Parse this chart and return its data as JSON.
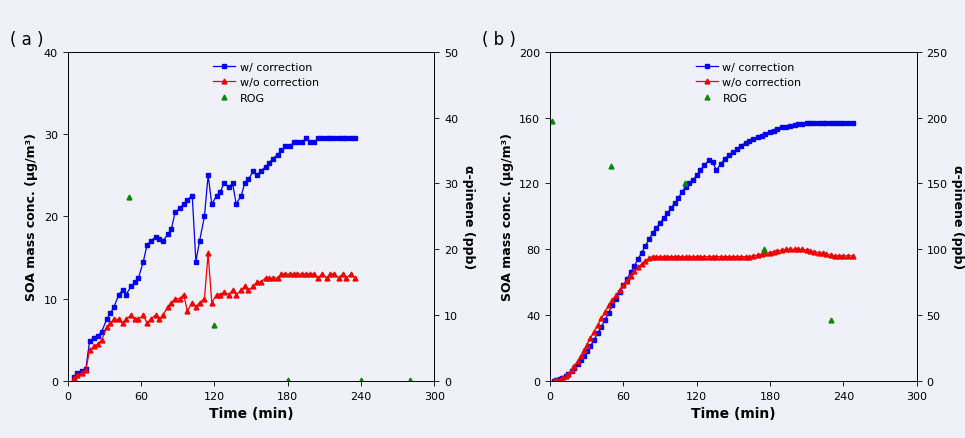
{
  "panel_a": {
    "blue_x": [
      5,
      8,
      12,
      15,
      18,
      22,
      25,
      28,
      32,
      35,
      38,
      42,
      45,
      48,
      52,
      55,
      58,
      62,
      65,
      68,
      72,
      75,
      78,
      82,
      85,
      88,
      92,
      95,
      98,
      102,
      105,
      108,
      112,
      115,
      118,
      122,
      125,
      128,
      132,
      135,
      138,
      142,
      145,
      148,
      152,
      155,
      158,
      162,
      165,
      168,
      172,
      175,
      178,
      182,
      185,
      188,
      192,
      195,
      198,
      202,
      205,
      208,
      212,
      215,
      218,
      222,
      225,
      228,
      232,
      235
    ],
    "blue_y": [
      0.5,
      1.0,
      1.2,
      1.5,
      4.8,
      5.2,
      5.5,
      6.0,
      7.5,
      8.2,
      9.0,
      10.5,
      11.0,
      10.5,
      11.5,
      12.0,
      12.5,
      14.5,
      16.5,
      17.0,
      17.5,
      17.2,
      17.0,
      17.8,
      18.5,
      20.5,
      21.0,
      21.5,
      22.0,
      22.5,
      14.5,
      17.0,
      20.0,
      25.0,
      21.5,
      22.5,
      23.0,
      24.0,
      23.5,
      24.0,
      21.5,
      22.5,
      24.0,
      24.5,
      25.5,
      25.0,
      25.5,
      26.0,
      26.5,
      27.0,
      27.5,
      28.0,
      28.5,
      28.5,
      29.0,
      29.0,
      29.0,
      29.5,
      29.0,
      29.0,
      29.5,
      29.5,
      29.5,
      29.5,
      29.5,
      29.5,
      29.5,
      29.5,
      29.5,
      29.5
    ],
    "red_x": [
      5,
      8,
      12,
      15,
      18,
      22,
      25,
      28,
      32,
      35,
      38,
      42,
      45,
      48,
      52,
      55,
      58,
      62,
      65,
      68,
      72,
      75,
      78,
      82,
      85,
      88,
      92,
      95,
      98,
      102,
      105,
      108,
      112,
      115,
      118,
      122,
      125,
      128,
      132,
      135,
      138,
      142,
      145,
      148,
      152,
      155,
      158,
      162,
      165,
      168,
      172,
      175,
      178,
      182,
      185,
      188,
      192,
      195,
      198,
      202,
      205,
      208,
      212,
      215,
      218,
      222,
      225,
      228,
      232,
      235
    ],
    "red_y": [
      0.3,
      0.7,
      1.0,
      1.3,
      3.8,
      4.2,
      4.5,
      5.0,
      6.5,
      7.0,
      7.5,
      7.5,
      7.0,
      7.5,
      8.0,
      7.5,
      7.5,
      8.0,
      7.0,
      7.5,
      8.0,
      7.5,
      8.0,
      9.0,
      9.5,
      10.0,
      10.0,
      10.5,
      8.5,
      9.5,
      9.0,
      9.5,
      10.0,
      15.5,
      9.5,
      10.5,
      10.5,
      10.8,
      10.5,
      11.0,
      10.5,
      11.0,
      11.5,
      11.0,
      11.5,
      12.0,
      12.0,
      12.5,
      12.5,
      12.5,
      12.5,
      13.0,
      13.0,
      13.0,
      13.0,
      13.0,
      13.0,
      13.0,
      13.0,
      13.0,
      12.5,
      13.0,
      12.5,
      13.0,
      13.0,
      12.5,
      13.0,
      12.5,
      13.0,
      12.5
    ],
    "green_x": [
      50,
      120,
      180,
      240,
      280
    ],
    "green_y": [
      28.0,
      8.5,
      0.1,
      0.1,
      0.1
    ],
    "ylim_left": [
      0,
      40
    ],
    "ylim_right": [
      0,
      50
    ],
    "xlim": [
      0,
      300
    ],
    "xticks": [
      0,
      60,
      120,
      180,
      240,
      300
    ],
    "yticks_left": [
      0,
      10,
      20,
      30,
      40
    ],
    "yticks_right": [
      0,
      10,
      20,
      30,
      40,
      50
    ],
    "ylabel_left": "SOA mass conc. (μg/m³)",
    "ylabel_right": "α-pinene (ppb)",
    "xlabel": "Time (min)",
    "label": "( a )"
  },
  "panel_b": {
    "blue_x": [
      3,
      5,
      8,
      10,
      13,
      15,
      18,
      20,
      23,
      25,
      28,
      30,
      33,
      36,
      39,
      42,
      45,
      48,
      51,
      54,
      57,
      60,
      63,
      66,
      69,
      72,
      75,
      78,
      81,
      84,
      87,
      90,
      93,
      96,
      99,
      102,
      105,
      108,
      111,
      114,
      117,
      120,
      123,
      126,
      130,
      133,
      136,
      140,
      143,
      146,
      150,
      153,
      156,
      160,
      163,
      166,
      170,
      173,
      176,
      180,
      183,
      186,
      190,
      193,
      196,
      200,
      203,
      206,
      210,
      213,
      216,
      220,
      223,
      226,
      230,
      233,
      236,
      240,
      244,
      248
    ],
    "blue_y": [
      0.2,
      0.5,
      1.0,
      1.8,
      3.0,
      4.5,
      6.0,
      8.0,
      10.0,
      12.5,
      15.0,
      18.0,
      21.0,
      25.0,
      29.0,
      33.0,
      37.0,
      41.5,
      46.0,
      50.0,
      54.0,
      58.0,
      62.0,
      66.0,
      70.0,
      74.0,
      78.0,
      82.0,
      86.0,
      90.0,
      93.0,
      96.0,
      99.0,
      102.0,
      105.0,
      108.0,
      111.0,
      115.0,
      118.0,
      120.0,
      122.0,
      125.0,
      128.0,
      131.0,
      134.0,
      133.0,
      128.0,
      132.0,
      135.0,
      137.0,
      139.0,
      141.0,
      143.0,
      144.5,
      146.0,
      147.0,
      148.0,
      149.0,
      150.0,
      151.0,
      152.0,
      153.0,
      154.0,
      154.5,
      155.0,
      155.5,
      156.0,
      156.0,
      156.5,
      156.5,
      156.5,
      156.5,
      156.5,
      156.5,
      156.5,
      156.5,
      156.5,
      156.5,
      156.5,
      156.5
    ],
    "red_x": [
      3,
      5,
      8,
      10,
      13,
      15,
      18,
      20,
      23,
      25,
      28,
      30,
      33,
      36,
      39,
      42,
      45,
      48,
      51,
      54,
      57,
      60,
      63,
      66,
      69,
      72,
      75,
      78,
      81,
      84,
      87,
      90,
      93,
      96,
      99,
      102,
      105,
      108,
      111,
      114,
      117,
      120,
      123,
      126,
      130,
      133,
      136,
      140,
      143,
      146,
      150,
      153,
      156,
      160,
      163,
      166,
      170,
      173,
      176,
      180,
      183,
      186,
      190,
      193,
      196,
      200,
      203,
      206,
      210,
      213,
      216,
      220,
      223,
      226,
      230,
      233,
      236,
      240,
      244,
      248
    ],
    "red_y": [
      0.1,
      0.3,
      0.8,
      1.5,
      2.8,
      4.5,
      6.5,
      9.0,
      12.0,
      15.0,
      18.5,
      22.0,
      26.0,
      30.0,
      34.0,
      38.0,
      42.0,
      46.0,
      49.0,
      52.0,
      55.0,
      58.0,
      61.0,
      64.0,
      67.0,
      69.0,
      71.0,
      73.0,
      74.5,
      75.5,
      75.5,
      75.5,
      75.5,
      75.5,
      75.5,
      75.5,
      75.5,
      75.5,
      75.5,
      75.5,
      75.5,
      75.5,
      75.5,
      75.5,
      75.5,
      75.5,
      75.5,
      75.5,
      75.5,
      75.5,
      75.5,
      75.5,
      75.5,
      75.5,
      75.5,
      76.0,
      76.5,
      77.0,
      77.5,
      78.0,
      78.5,
      79.0,
      79.5,
      80.0,
      80.0,
      80.0,
      80.0,
      80.0,
      79.5,
      79.0,
      78.5,
      78.0,
      77.5,
      77.0,
      76.5,
      76.0,
      76.0,
      76.0,
      76.0,
      76.0
    ],
    "green_x": [
      2,
      50,
      110,
      175,
      230
    ],
    "green_y": [
      197,
      163,
      150,
      100,
      46
    ],
    "ylim_left": [
      0,
      200
    ],
    "ylim_right": [
      0,
      250
    ],
    "xlim": [
      0,
      300
    ],
    "xticks": [
      0,
      60,
      120,
      180,
      240,
      300
    ],
    "yticks_left": [
      0,
      40,
      80,
      120,
      160,
      200
    ],
    "yticks_right": [
      0,
      50,
      100,
      150,
      200,
      250
    ],
    "ylabel_left": "SOA mass conc. (μg/m³)",
    "ylabel_right": "α-pinene (ppb)",
    "xlabel": "Time (min)",
    "label": "( b )"
  },
  "legend_labels": [
    "w/ correction",
    "w/o correction",
    "ROG"
  ],
  "blue_color": "#0000EE",
  "red_color": "#EE0000",
  "green_color": "#008800",
  "marker_blue": "s",
  "marker_red": "^",
  "marker_green": "^",
  "markersize": 3.5,
  "linewidth": 0.9,
  "fig_width": 9.65,
  "fig_height": 4.39,
  "background_color": "#F0F0F8"
}
